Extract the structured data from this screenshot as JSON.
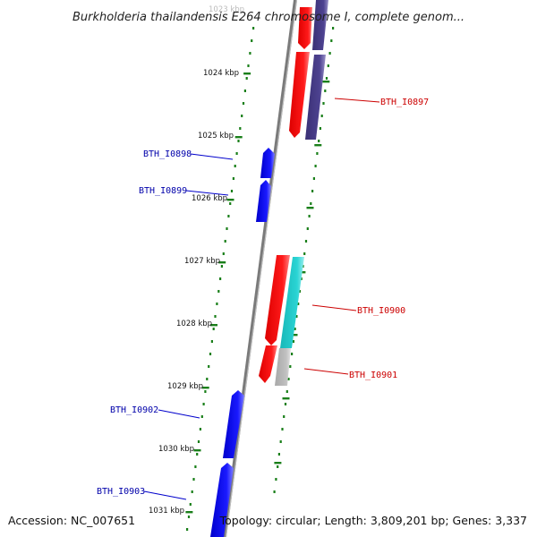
{
  "title": "Burkholderia thailandensis E264 chromosome I, complete genom...",
  "footer": {
    "accession": "Accession: NC_007651",
    "topology": "Topology: circular; Length: 3,809,201 bp; Genes: 3,337"
  },
  "kbp_labels": [
    "1023 kbp",
    "1024 kbp",
    "1025 kbp",
    "1026 kbp",
    "1027 kbp",
    "1028 kbp",
    "1029 kbp",
    "1030 kbp",
    "1031 kbp"
  ],
  "colors": {
    "forward_gene": "#0000ee",
    "reverse_gene": "#ee0000",
    "label_forward": "#0000aa",
    "label_reverse": "#cc0000",
    "ruler": "#1a7f1a",
    "backbone": "#888888",
    "cds_purple": "#4a3f8a",
    "cds_cyan": "#22cccc",
    "cds_gray": "#bbbbbb"
  },
  "gene_labels": {
    "forward": [
      "BTH_I0898",
      "BTH_I0899",
      "BTH_I0902",
      "BTH_I0903"
    ],
    "reverse": [
      "BTH_I0897",
      "BTH_I0900",
      "BTH_I0901"
    ]
  }
}
